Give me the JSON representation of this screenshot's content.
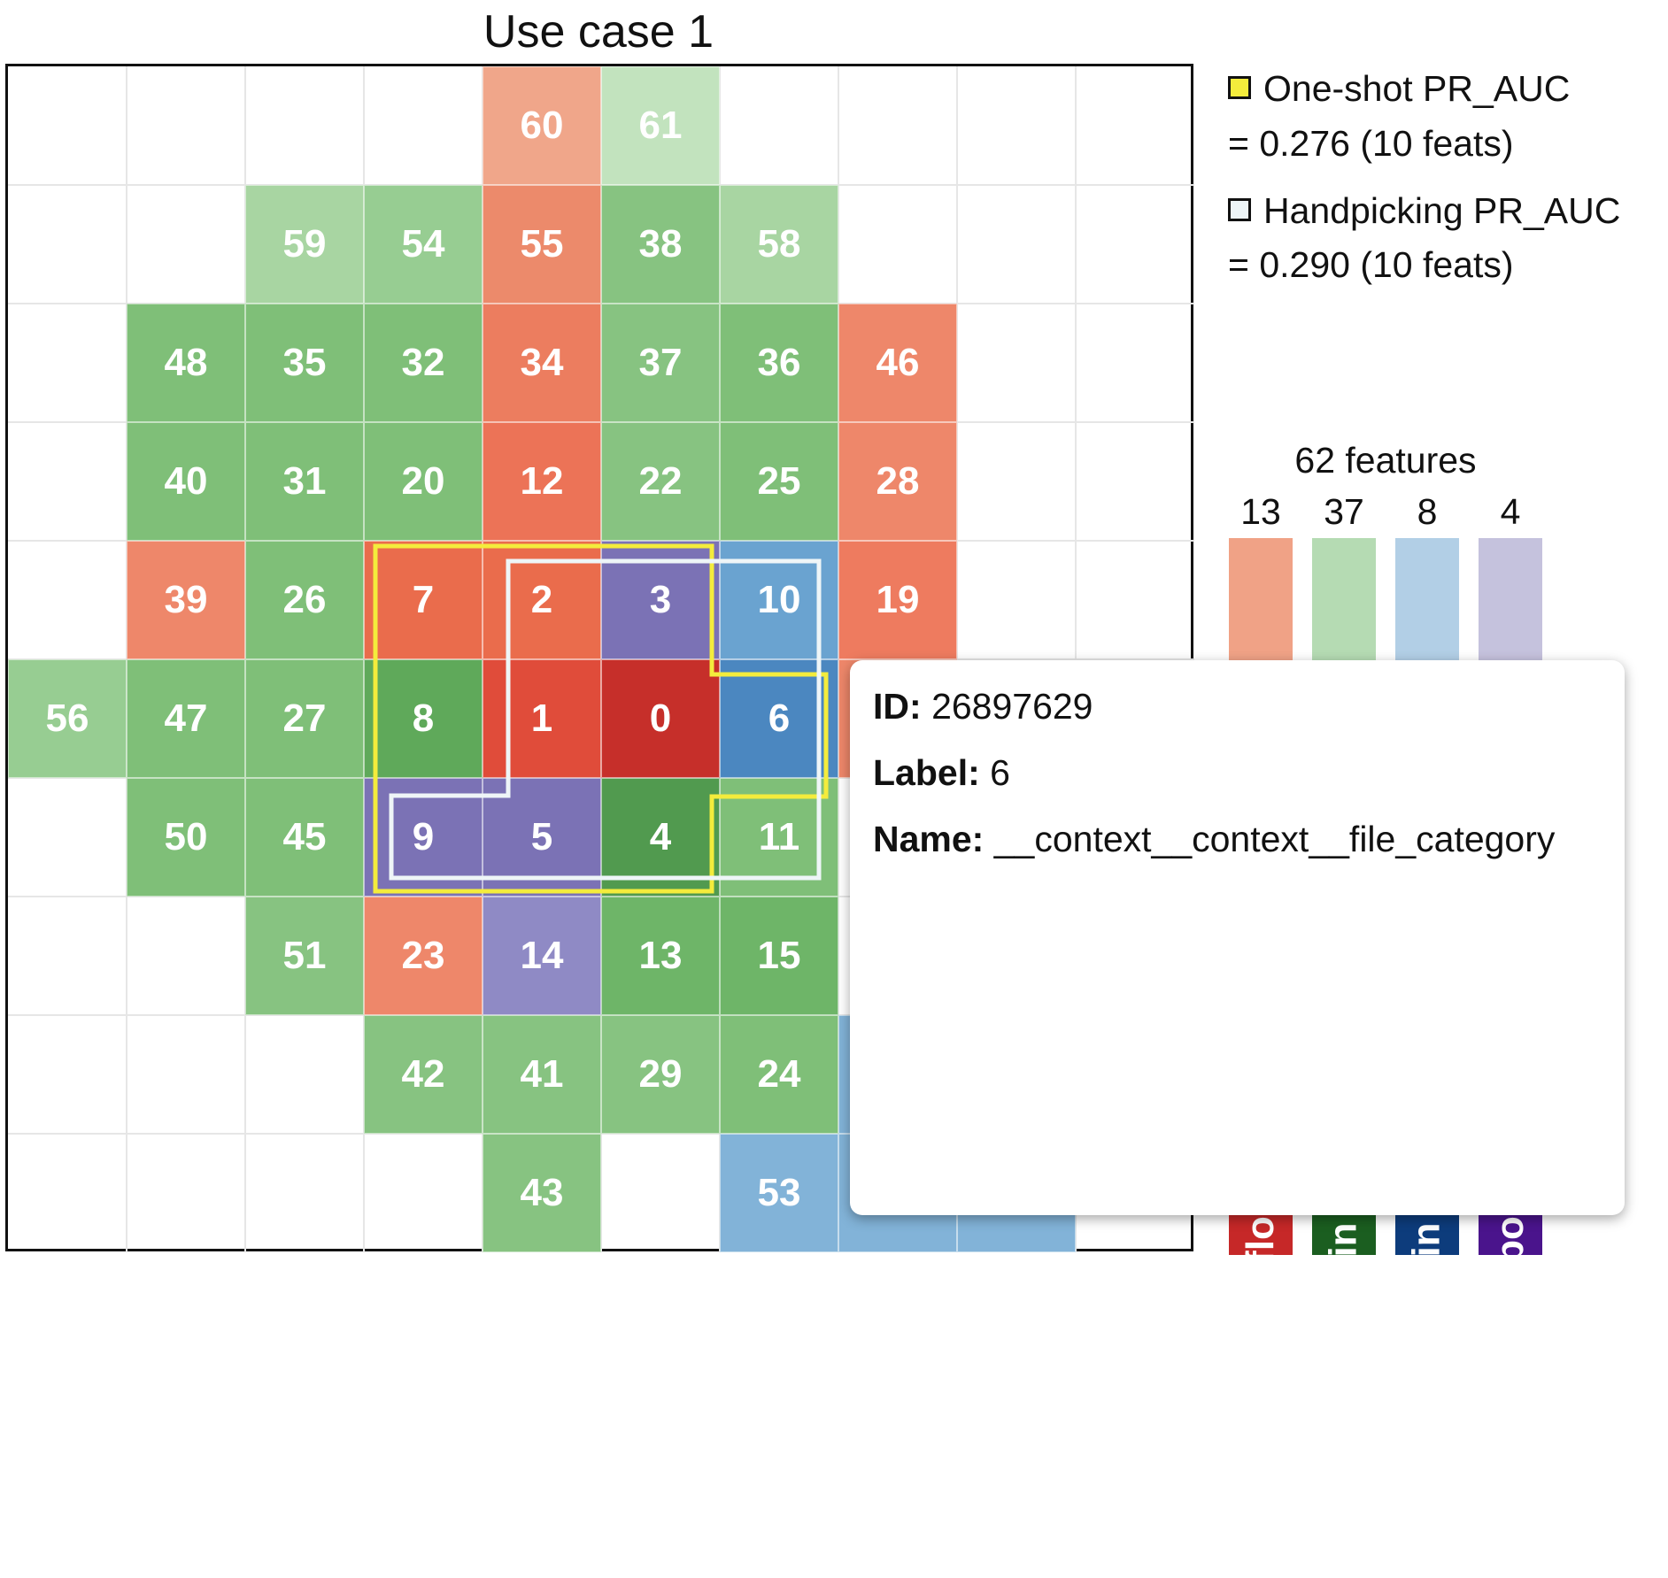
{
  "title": "Use case 1",
  "legend": [
    {
      "label": "One-shot PR_AUC",
      "value": "= 0.276 (10 feats)",
      "swatch_color": "#f4ec3c"
    },
    {
      "label": "Handpicking PR_AUC",
      "value": "= 0.290 (10 feats)",
      "swatch_color": "#eef5f7"
    }
  ],
  "features_summary": {
    "heading": "62 features",
    "categories": [
      {
        "count": "13",
        "color": "#f0a286",
        "tab_color": "#c62828",
        "tab_label": "flo"
      },
      {
        "count": "37",
        "color": "#b5dbb3",
        "tab_color": "#1b5e20",
        "tab_label": "in"
      },
      {
        "count": "8",
        "color": "#b2cfe6",
        "tab_color": "#0d3c7c",
        "tab_label": "in"
      },
      {
        "count": "4",
        "color": "#c5c2dd",
        "tab_color": "#4a148c",
        "tab_label": "bo"
      }
    ]
  },
  "cells": [
    {
      "label": "60",
      "row": 0,
      "col": 4,
      "color": "#f0a68a"
    },
    {
      "label": "61",
      "row": 0,
      "col": 5,
      "color": "#c2e3be"
    },
    {
      "label": "59",
      "row": 1,
      "col": 2,
      "color": "#a8d5a2"
    },
    {
      "label": "54",
      "row": 1,
      "col": 3,
      "color": "#97cd92"
    },
    {
      "label": "55",
      "row": 1,
      "col": 4,
      "color": "#ec8a6b"
    },
    {
      "label": "38",
      "row": 1,
      "col": 5,
      "color": "#87c381"
    },
    {
      "label": "58",
      "row": 1,
      "col": 6,
      "color": "#a8d5a2"
    },
    {
      "label": "48",
      "row": 2,
      "col": 1,
      "color": "#7fbf78"
    },
    {
      "label": "35",
      "row": 2,
      "col": 2,
      "color": "#7fbf78"
    },
    {
      "label": "32",
      "row": 2,
      "col": 3,
      "color": "#7fbf78"
    },
    {
      "label": "34",
      "row": 2,
      "col": 4,
      "color": "#ec7d5f"
    },
    {
      "label": "37",
      "row": 2,
      "col": 5,
      "color": "#87c381"
    },
    {
      "label": "36",
      "row": 2,
      "col": 6,
      "color": "#7fbf78"
    },
    {
      "label": "46",
      "row": 2,
      "col": 7,
      "color": "#ee876a"
    },
    {
      "label": "40",
      "row": 3,
      "col": 1,
      "color": "#7fbf78"
    },
    {
      "label": "31",
      "row": 3,
      "col": 2,
      "color": "#7fbf78"
    },
    {
      "label": "20",
      "row": 3,
      "col": 3,
      "color": "#7fbf78"
    },
    {
      "label": "12",
      "row": 3,
      "col": 4,
      "color": "#ec7357"
    },
    {
      "label": "22",
      "row": 3,
      "col": 5,
      "color": "#87c381"
    },
    {
      "label": "25",
      "row": 3,
      "col": 6,
      "color": "#7fbf78"
    },
    {
      "label": "28",
      "row": 3,
      "col": 7,
      "color": "#ee876a"
    },
    {
      "label": "39",
      "row": 4,
      "col": 1,
      "color": "#ee876a"
    },
    {
      "label": "26",
      "row": 4,
      "col": 2,
      "color": "#7fbf78"
    },
    {
      "label": "7",
      "row": 4,
      "col": 3,
      "color": "#ea6c4c"
    },
    {
      "label": "2",
      "row": 4,
      "col": 4,
      "color": "#ea6c4c"
    },
    {
      "label": "3",
      "row": 4,
      "col": 5,
      "color": "#7b72b5"
    },
    {
      "label": "10",
      "row": 4,
      "col": 6,
      "color": "#6aa3d0"
    },
    {
      "label": "19",
      "row": 4,
      "col": 7,
      "color": "#ee7b5f"
    },
    {
      "label": "56",
      "row": 5,
      "col": 0,
      "color": "#97cd92"
    },
    {
      "label": "47",
      "row": 5,
      "col": 1,
      "color": "#7fbf78"
    },
    {
      "label": "27",
      "row": 5,
      "col": 2,
      "color": "#7fbf78"
    },
    {
      "label": "8",
      "row": 5,
      "col": 3,
      "color": "#5fa95a"
    },
    {
      "label": "1",
      "row": 5,
      "col": 4,
      "color": "#e04c3a"
    },
    {
      "label": "0",
      "row": 5,
      "col": 5,
      "color": "#c62f2a"
    },
    {
      "label": "6",
      "row": 5,
      "col": 6,
      "color": "#4b87c0"
    },
    {
      "label": "50",
      "row": 6,
      "col": 1,
      "color": "#7fbf78"
    },
    {
      "label": "45",
      "row": 6,
      "col": 2,
      "color": "#7fbf78"
    },
    {
      "label": "9",
      "row": 6,
      "col": 3,
      "color": "#7b72b5"
    },
    {
      "label": "5",
      "row": 6,
      "col": 4,
      "color": "#7b72b5"
    },
    {
      "label": "4",
      "row": 6,
      "col": 5,
      "color": "#519a4f"
    },
    {
      "label": "11",
      "row": 6,
      "col": 6,
      "color": "#7fbf78"
    },
    {
      "label": "51",
      "row": 7,
      "col": 2,
      "color": "#87c381"
    },
    {
      "label": "23",
      "row": 7,
      "col": 3,
      "color": "#ee876a"
    },
    {
      "label": "14",
      "row": 7,
      "col": 4,
      "color": "#8f8ac5"
    },
    {
      "label": "13",
      "row": 7,
      "col": 5,
      "color": "#6eb568"
    },
    {
      "label": "15",
      "row": 7,
      "col": 6,
      "color": "#6eb568"
    },
    {
      "label": "42",
      "row": 8,
      "col": 3,
      "color": "#87c381"
    },
    {
      "label": "41",
      "row": 8,
      "col": 4,
      "color": "#87c381"
    },
    {
      "label": "29",
      "row": 8,
      "col": 5,
      "color": "#87c381"
    },
    {
      "label": "24",
      "row": 8,
      "col": 6,
      "color": "#7fbf78"
    },
    {
      "label": "43",
      "row": 9,
      "col": 4,
      "color": "#87c381"
    },
    {
      "label": "53",
      "row": 9,
      "col": 6,
      "color": "#82b3d8"
    }
  ],
  "extra_cells": [
    {
      "row": 5,
      "col": 7,
      "color": "#ee876a"
    },
    {
      "row": 8,
      "col": 7,
      "color": "#82b3d8"
    },
    {
      "row": 9,
      "col": 7,
      "color": "#82b3d8"
    },
    {
      "row": 9,
      "col": 8,
      "color": "#82b3d8"
    }
  ],
  "tooltip": {
    "id_key": "ID:",
    "id_value": "26897629",
    "label_key": "Label:",
    "label_value": "6",
    "name_key": "Name:",
    "name_value": "__context__context__file_category"
  }
}
